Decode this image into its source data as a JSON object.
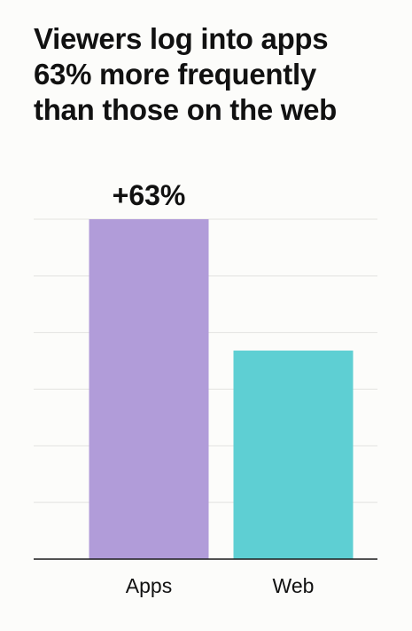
{
  "chart_data": {
    "type": "bar",
    "title_lines": [
      "Viewers log into apps",
      "63% more frequently",
      "than those on the web"
    ],
    "categories": [
      "Apps",
      "Web"
    ],
    "values": [
      163,
      100
    ],
    "bar_colors": [
      "#b19cd9",
      "#5ecfd3"
    ],
    "annotation": {
      "category": "Apps",
      "text": "+63%"
    },
    "ylim": [
      0,
      163
    ],
    "grid": true,
    "y_tick_labels": false,
    "xlabel": "",
    "ylabel": ""
  }
}
